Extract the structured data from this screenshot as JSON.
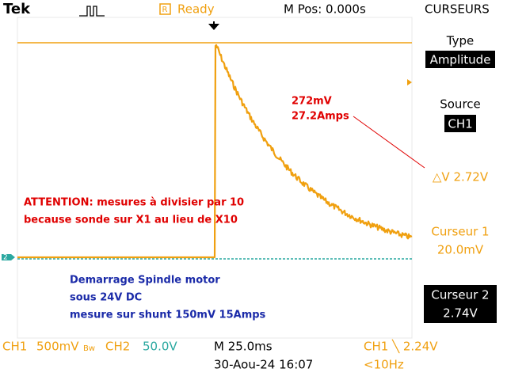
{
  "header": {
    "brand": "Tek",
    "status": "Ready",
    "position": "M Pos: 0.000s",
    "menu": "CURSEURS"
  },
  "markers": {
    "ch2": "2"
  },
  "annotations": {
    "peak_voltage": "272mV",
    "peak_current": "27.2Amps",
    "warning_1": "ATTENTION: mesures à divisier par 10",
    "warning_2": "because sonde sur X1 au lieu de X10",
    "note_1": "Demarrage Spindle motor",
    "note_2": "sous 24V DC",
    "note_3": "mesure sur shunt 150mV 15Amps"
  },
  "side_menu": {
    "type_label": "Type",
    "type_value": "Amplitude",
    "source_label": "Source",
    "source_value": "CH1",
    "delta": "△V 2.72V",
    "cursor1_label": "Curseur 1",
    "cursor1_value": "20.0mV",
    "cursor2_label": "Curseur 2",
    "cursor2_value": "2.74V"
  },
  "footer": {
    "ch1": "CH1",
    "ch1_scale": "500mV",
    "ch1_bw": "Bw",
    "ch2": "CH2",
    "ch2_scale": "50.0V",
    "timebase": "M 25.0ms",
    "trigger": "CH1 ╲ 2.24V",
    "date": "30-Aou-24 16:07",
    "frequency": "<10Hz"
  }
}
